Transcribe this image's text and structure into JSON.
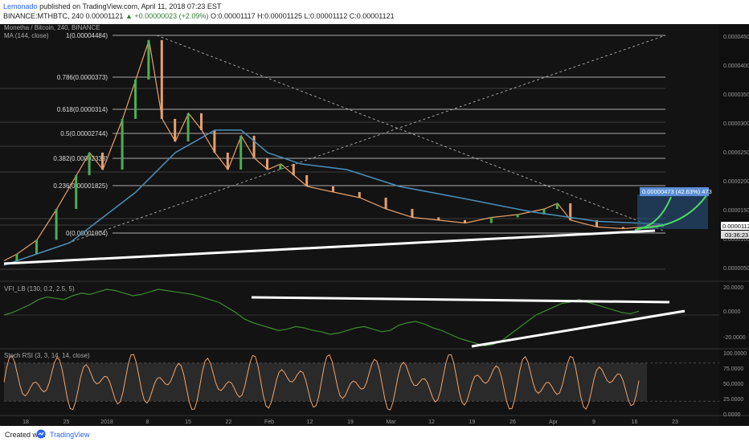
{
  "header": {
    "author": "Lemonado",
    "published": "published on TradingView.com, April 11, 2018 07:23 EST",
    "ticker": "BINANCE:MTHBTC, 240",
    "last": "0.00001121",
    "change": "▲ +0.00000023 (+2.09%)",
    "ohlc": "O:0.00001117 H:0.00001125 L:0.00001112 C:0.00001121"
  },
  "footer": {
    "created": "Created with",
    "brand": "TradingView"
  },
  "colors": {
    "bg": "#131313",
    "candle_up": "#4caf50",
    "candle_down": "#e8a06a",
    "ma": "#4a90b8",
    "vfi": "#3c8c2e",
    "stoch": "#f0a36a",
    "white": "#ffffff",
    "projection": "#4cd964",
    "label_bg": "#5b8fd6"
  },
  "icons": {
    "tradingview_logo": "tradingview-logo-icon"
  },
  "chart_data": [
    {
      "type": "candlestick",
      "title": "Monetha / Bitcoin, 240, BINANCE",
      "indicator": "MA (144, close)",
      "x_ticks": [
        "18",
        "25",
        "2018",
        "8",
        "15",
        "22",
        "Feb",
        "12",
        "19",
        "Mar",
        "12",
        "19",
        "26",
        "Apr",
        "9",
        "16",
        "23"
      ],
      "y_ticks": [
        "0.00004500",
        "0.00004000",
        "0.00003500",
        "0.00003000",
        "0.00002500",
        "0.00002000",
        "0.00001500",
        "0.00001000",
        "0.00000500"
      ],
      "ylim": [
        3.8e-06,
        4.7e-06
      ],
      "price_path": [
        [
          0,
          4.8e-06
        ],
        [
          0.02,
          6e-06
        ],
        [
          0.05,
          8.5e-06
        ],
        [
          0.08,
          1.4e-05
        ],
        [
          0.11,
          2e-05
        ],
        [
          0.13,
          2.4e-05
        ],
        [
          0.15,
          2.1e-05
        ],
        [
          0.18,
          3e-05
        ],
        [
          0.2,
          3.7e-05
        ],
        [
          0.22,
          4.4e-05
        ],
        [
          0.24,
          3e-05
        ],
        [
          0.26,
          2.6e-05
        ],
        [
          0.28,
          3.1e-05
        ],
        [
          0.3,
          2.8e-05
        ],
        [
          0.32,
          2.4e-05
        ],
        [
          0.34,
          2.1e-05
        ],
        [
          0.36,
          2.7e-05
        ],
        [
          0.38,
          2.3e-05
        ],
        [
          0.4,
          2.1e-05
        ],
        [
          0.42,
          2.2e-05
        ],
        [
          0.44,
          2e-05
        ],
        [
          0.46,
          1.8e-05
        ],
        [
          0.5,
          1.7e-05
        ],
        [
          0.54,
          1.6e-05
        ],
        [
          0.58,
          1.4e-05
        ],
        [
          0.62,
          1.25e-05
        ],
        [
          0.66,
          1.2e-05
        ],
        [
          0.7,
          1.15e-05
        ],
        [
          0.74,
          1.25e-05
        ],
        [
          0.78,
          1.3e-05
        ],
        [
          0.82,
          1.4e-05
        ],
        [
          0.84,
          1.5e-05
        ],
        [
          0.86,
          1.2e-05
        ],
        [
          0.9,
          1.08e-05
        ],
        [
          0.94,
          1.05e-05
        ],
        [
          0.97,
          1.08e-05
        ],
        [
          1.0,
          1.12e-05
        ]
      ],
      "ma_path": [
        [
          0,
          4e-06
        ],
        [
          0.1,
          8e-06
        ],
        [
          0.2,
          1.7e-05
        ],
        [
          0.26,
          2.4e-05
        ],
        [
          0.32,
          2.8e-05
        ],
        [
          0.36,
          2.8e-05
        ],
        [
          0.4,
          2.4e-05
        ],
        [
          0.45,
          2.2e-05
        ],
        [
          0.52,
          2.1e-05
        ],
        [
          0.6,
          1.8e-05
        ],
        [
          0.7,
          1.58e-05
        ],
        [
          0.8,
          1.35e-05
        ],
        [
          0.9,
          1.18e-05
        ],
        [
          1.0,
          1.13e-05
        ]
      ],
      "fibonacci": [
        {
          "level": "1",
          "price": "0.00004484"
        },
        {
          "level": "0.786",
          "price": "0.0000373"
        },
        {
          "level": "0.618",
          "price": "0.0000314"
        },
        {
          "level": "0.5",
          "price": "0.00002744"
        },
        {
          "level": "0.382",
          "price": "0.00002333"
        },
        {
          "level": "0.236",
          "price": "0.00001825"
        },
        {
          "level": "0",
          "price": "0.00001004"
        }
      ],
      "price_label": "0.00001121",
      "countdown": "03:36:23",
      "projection_label": "0.00000473 (42.63%) 473"
    },
    {
      "type": "line",
      "title": "VFI_LB (130, 0.2, 2.5, 5)",
      "y_ticks": [
        "20.0000",
        "0.0000",
        "-20.0000"
      ],
      "ylim": [
        -25,
        25
      ],
      "values": [
        0,
        2,
        5,
        8,
        12,
        14,
        13,
        12,
        15,
        17,
        16,
        18,
        20,
        19,
        17,
        15,
        16,
        18,
        20,
        19,
        18,
        17,
        16,
        14,
        12,
        10,
        6,
        2,
        -3,
        -6,
        -8,
        -10,
        -12,
        -11,
        -9,
        -10,
        -12,
        -13,
        -15,
        -14,
        -12,
        -10,
        -9,
        -11,
        -13,
        -12,
        -8,
        -6,
        -5,
        -7,
        -10,
        -12,
        -15,
        -18,
        -20,
        -22,
        -24,
        -23,
        -20,
        -15,
        -10,
        -5,
        0,
        3,
        6,
        9,
        10,
        12,
        10,
        8,
        6,
        4,
        2,
        1,
        3
      ]
    },
    {
      "type": "line",
      "title": "Stoch RSI (3, 3, 14, 14, close)",
      "y_ticks": [
        "100.0000",
        "75.0000",
        "50.0000",
        "25.0000",
        "0.0000"
      ],
      "ylim": [
        0,
        100
      ]
    }
  ]
}
